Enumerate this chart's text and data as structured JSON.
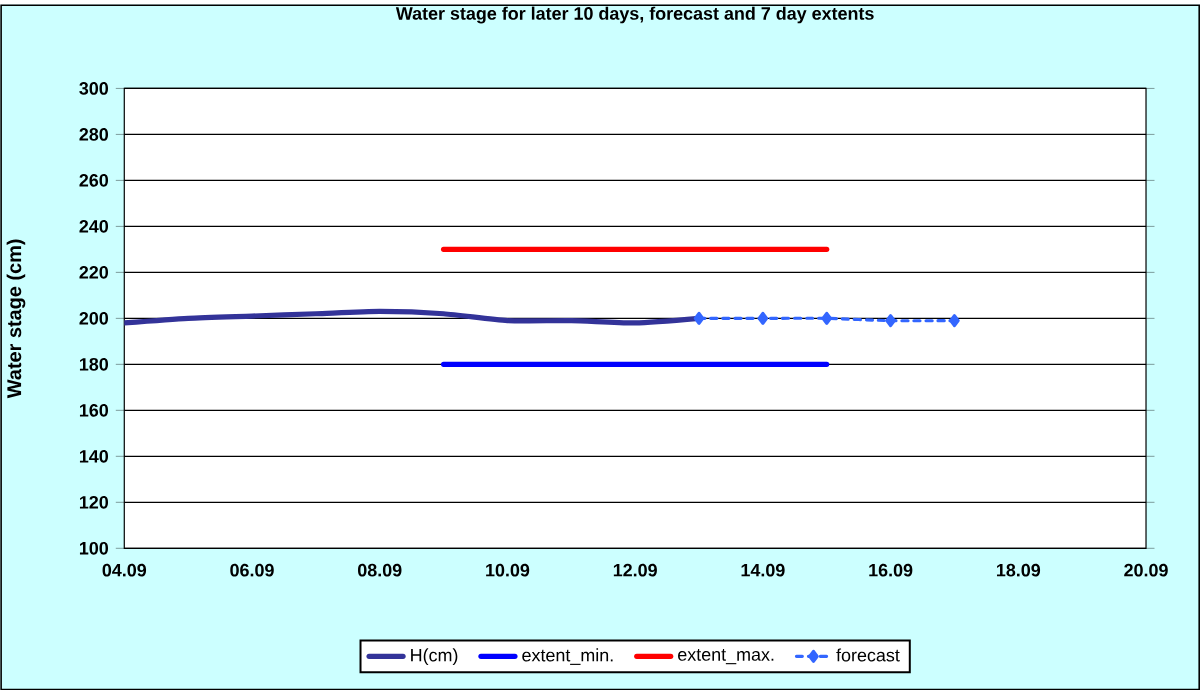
{
  "chart_data": {
    "type": "line",
    "title": "Water stage for later 10 days, forecast and 7 day extents",
    "ylabel": "Water stage (cm)",
    "xlim": [
      "--09-04",
      "--09-20"
    ],
    "xticks": [
      {
        "value": "--09-04",
        "label": "04.09"
      },
      {
        "value": "--09-06",
        "label": "06.09"
      },
      {
        "value": "--09-08",
        "label": "08.09"
      },
      {
        "value": "--09-10",
        "label": "10.09"
      },
      {
        "value": "--09-12",
        "label": "12.09"
      },
      {
        "value": "--09-14",
        "label": "14.09"
      },
      {
        "value": "--09-16",
        "label": "16.09"
      },
      {
        "value": "--09-18",
        "label": "18.09"
      },
      {
        "value": "--09-20",
        "label": "20.09"
      }
    ],
    "ylim": [
      100,
      300
    ],
    "yticks": [
      100,
      120,
      140,
      160,
      180,
      200,
      220,
      240,
      260,
      280,
      300
    ],
    "grid": "y",
    "legend": "bottom",
    "series": [
      {
        "name": "H(cm)",
        "color": "#333399",
        "line_style": "solid",
        "marker": "none",
        "x": [
          "--09-04",
          "--09-05",
          "--09-06",
          "--09-07",
          "--09-08",
          "--09-09",
          "--09-10",
          "--09-11",
          "--09-12",
          "--09-13"
        ],
        "values": [
          198,
          200,
          201,
          202,
          203,
          202,
          199,
          199,
          198,
          200
        ]
      },
      {
        "name": "extent_min.",
        "color": "#0000ff",
        "line_style": "solid",
        "marker": "none",
        "x": [
          "--09-09",
          "--09-15"
        ],
        "values": [
          180,
          180
        ]
      },
      {
        "name": "extent_max.",
        "color": "#ff0000",
        "line_style": "solid",
        "marker": "none",
        "x": [
          "--09-09",
          "--09-15"
        ],
        "values": [
          230,
          230
        ]
      },
      {
        "name": "forecast",
        "color": "#3366ff",
        "line_style": "dashed",
        "marker": "diamond",
        "x": [
          "--09-13",
          "--09-14",
          "--09-15",
          "--09-16",
          "--09-17"
        ],
        "values": [
          200,
          200,
          200,
          199,
          199
        ]
      }
    ]
  }
}
